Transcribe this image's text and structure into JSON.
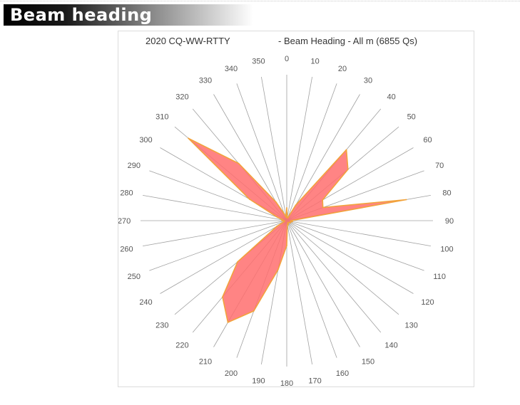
{
  "header": {
    "title": "Beam heading",
    "colors": {
      "gradient_start": "#000000",
      "gradient_end": "#ffffff",
      "text": "#ffffff"
    }
  },
  "chart_data": {
    "type": "radar",
    "title_left": "2020 CQ-WW-RTTY",
    "title_right": "- Beam Heading - All m (6855 Qs)",
    "angular_unit": "degrees",
    "tick_labels": [
      "0",
      "10",
      "20",
      "30",
      "40",
      "50",
      "60",
      "70",
      "80",
      "90",
      "100",
      "110",
      "120",
      "130",
      "140",
      "150",
      "160",
      "170",
      "180",
      "190",
      "200",
      "210",
      "220",
      "230",
      "240",
      "250",
      "260",
      "270",
      "280",
      "290",
      "300",
      "310",
      "320",
      "330",
      "340",
      "350"
    ],
    "series": [
      {
        "headings": [
          0,
          10,
          20,
          30,
          40,
          50,
          60,
          70,
          80,
          90,
          100,
          110,
          120,
          130,
          140,
          150,
          160,
          170,
          180,
          190,
          200,
          210,
          220,
          230,
          240,
          250,
          260,
          270,
          280,
          290,
          300,
          310,
          320,
          330,
          340,
          350
        ],
        "values": [
          18,
          4,
          4,
          25,
          130,
          112,
          58,
          54,
          170,
          6,
          8,
          5,
          6,
          4,
          4,
          3,
          6,
          5,
          35,
          70,
          135,
          165,
          140,
          90,
          16,
          4,
          3,
          7,
          5,
          14,
          60,
          180,
          105,
          30,
          10,
          5
        ],
        "value_axis_max": 205
      }
    ],
    "colors": {
      "fill": "#ff6e6e",
      "fill_opacity": 0.85,
      "line": "#f2a33c",
      "spokes": "#a0a0a0"
    },
    "grid": "radial spokes only",
    "legend": "none"
  }
}
